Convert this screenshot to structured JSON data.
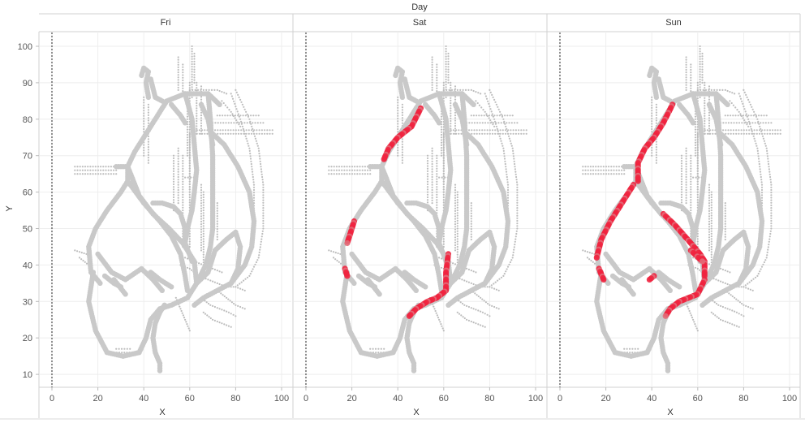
{
  "chart_data": {
    "type": "scatter",
    "column_header": "Day",
    "panels": [
      {
        "label": "Fri",
        "red_paths": []
      },
      {
        "label": "Sat",
        "red_paths": [
          [
            [
              50,
              83
            ],
            [
              46,
              78
            ],
            [
              40,
              75
            ],
            [
              36,
              72
            ],
            [
              34,
              69
            ]
          ],
          [
            [
              21,
              52
            ],
            [
              18,
              46
            ]
          ],
          [
            [
              17,
              39
            ],
            [
              18,
              37
            ]
          ],
          [
            [
              62,
              43
            ],
            [
              61,
              38
            ],
            [
              61,
              33
            ],
            [
              57,
              31
            ],
            [
              53,
              30
            ],
            [
              48,
              28
            ],
            [
              45,
              26
            ]
          ]
        ]
      },
      {
        "label": "Sun",
        "red_paths": [
          [
            [
              49,
              84
            ],
            [
              45,
              79
            ],
            [
              41,
              75
            ],
            [
              37,
              72
            ],
            [
              34,
              68
            ],
            [
              34,
              63
            ]
          ],
          [
            [
              32,
              62
            ],
            [
              27,
              57
            ],
            [
              22,
              52
            ],
            [
              18,
              47
            ],
            [
              16,
              42
            ]
          ],
          [
            [
              17,
              39
            ],
            [
              19,
              36
            ]
          ],
          [
            [
              45,
              54
            ],
            [
              50,
              51
            ],
            [
              57,
              46
            ],
            [
              61,
              43
            ],
            [
              63,
              41
            ],
            [
              63,
              37
            ]
          ],
          [
            [
              63,
              36
            ],
            [
              60,
              32
            ],
            [
              56,
              31
            ],
            [
              52,
              30
            ],
            [
              48,
              28
            ],
            [
              46,
              26
            ]
          ],
          [
            [
              41,
              37
            ],
            [
              39,
              36
            ]
          ],
          [
            [
              57,
              44
            ],
            [
              62,
              41
            ]
          ]
        ]
      }
    ],
    "x_axis": {
      "label": "X",
      "ticks": [
        0,
        20,
        40,
        60,
        80,
        100
      ],
      "range": [
        -6,
        104
      ]
    },
    "y_axis": {
      "label": "Y",
      "ticks": [
        10,
        20,
        30,
        40,
        50,
        60,
        70,
        80,
        90,
        100
      ],
      "range": [
        6,
        104
      ]
    },
    "reference_line_x": 0,
    "base_paths": [
      [
        [
          33,
          67
        ],
        [
          36,
          71
        ],
        [
          40,
          75
        ],
        [
          45,
          80
        ],
        [
          50,
          85
        ],
        [
          58,
          87
        ],
        [
          68,
          87
        ],
        [
          73,
          84
        ]
      ],
      [
        [
          33,
          67
        ],
        [
          33,
          63
        ],
        [
          30,
          60
        ],
        [
          24,
          55
        ],
        [
          19,
          50
        ],
        [
          16,
          45
        ],
        [
          17,
          38
        ],
        [
          21,
          35
        ]
      ],
      [
        [
          33,
          67
        ],
        [
          38,
          59
        ],
        [
          44,
          54
        ],
        [
          51,
          50
        ],
        [
          57,
          46
        ],
        [
          62,
          41
        ],
        [
          63,
          35
        ],
        [
          59,
          31
        ],
        [
          52,
          29
        ],
        [
          47,
          28
        ],
        [
          43,
          25
        ],
        [
          41,
          20
        ],
        [
          38,
          16
        ],
        [
          31,
          15
        ],
        [
          24,
          16
        ],
        [
          19,
          22
        ],
        [
          16,
          30
        ],
        [
          18,
          38
        ]
      ],
      [
        [
          33,
          63
        ],
        [
          40,
          57
        ],
        [
          47,
          52
        ],
        [
          52,
          48
        ],
        [
          56,
          43
        ],
        [
          58,
          37
        ],
        [
          59,
          33
        ]
      ],
      [
        [
          20,
          43
        ],
        [
          26,
          38
        ],
        [
          32,
          36
        ],
        [
          39,
          39
        ],
        [
          44,
          36
        ],
        [
          48,
          33
        ]
      ],
      [
        [
          27,
          36
        ],
        [
          32,
          32
        ]
      ],
      [
        [
          23,
          37
        ],
        [
          27,
          35
        ],
        [
          30,
          34
        ]
      ],
      [
        [
          28,
          67
        ],
        [
          33,
          67
        ]
      ],
      [
        [
          43,
          38
        ],
        [
          47,
          36
        ],
        [
          52,
          34
        ]
      ],
      [
        [
          49,
          29
        ],
        [
          47,
          27
        ],
        [
          45,
          24
        ],
        [
          44,
          20
        ],
        [
          45,
          16
        ],
        [
          47,
          13
        ],
        [
          47,
          11
        ]
      ],
      [
        [
          44,
          57
        ],
        [
          48,
          57
        ],
        [
          53,
          56
        ],
        [
          56,
          54
        ],
        [
          58,
          50
        ],
        [
          58,
          46
        ],
        [
          61,
          41
        ]
      ],
      [
        [
          58,
          87
        ],
        [
          61,
          80
        ],
        [
          62,
          73
        ],
        [
          63,
          66
        ],
        [
          62,
          60
        ],
        [
          61,
          55
        ],
        [
          59,
          50
        ],
        [
          58,
          46
        ]
      ],
      [
        [
          68,
          87
        ],
        [
          69,
          80
        ],
        [
          70,
          70
        ],
        [
          70,
          60
        ],
        [
          70,
          50
        ],
        [
          69,
          45
        ],
        [
          67,
          40
        ],
        [
          63,
          35
        ]
      ],
      [
        [
          63,
          35
        ],
        [
          68,
          38
        ],
        [
          71,
          44
        ],
        [
          76,
          47
        ],
        [
          80,
          49
        ],
        [
          82,
          45
        ],
        [
          81,
          39
        ],
        [
          78,
          35
        ]
      ],
      [
        [
          70,
          76
        ],
        [
          75,
          73
        ],
        [
          81,
          67
        ],
        [
          86,
          60
        ],
        [
          88,
          52
        ],
        [
          87,
          45
        ],
        [
          84,
          40
        ],
        [
          78,
          35
        ],
        [
          72,
          33
        ],
        [
          66,
          31
        ],
        [
          62,
          29
        ]
      ],
      [
        [
          65,
          84
        ],
        [
          68,
          80
        ],
        [
          70,
          73
        ]
      ],
      [
        [
          43,
          91
        ],
        [
          45,
          86
        ],
        [
          48,
          85
        ]
      ],
      [
        [
          39,
          92
        ],
        [
          40,
          94
        ],
        [
          42,
          93
        ],
        [
          41,
          90
        ],
        [
          42,
          86
        ]
      ],
      [
        [
          52,
          84
        ],
        [
          56,
          81
        ],
        [
          58,
          79
        ]
      ]
    ],
    "faint_segments": [
      [
        [
          10,
          67
        ],
        [
          28,
          67
        ]
      ],
      [
        [
          10,
          66
        ],
        [
          28,
          66
        ]
      ],
      [
        [
          10,
          65
        ],
        [
          28,
          65
        ]
      ],
      [
        [
          62,
          77
        ],
        [
          96,
          77
        ]
      ],
      [
        [
          62,
          76
        ],
        [
          96,
          76
        ]
      ],
      [
        [
          70,
          79
        ],
        [
          92,
          79
        ]
      ],
      [
        [
          72,
          81
        ],
        [
          90,
          81
        ]
      ],
      [
        [
          63,
          76
        ],
        [
          63,
          90
        ]
      ],
      [
        [
          65,
          76
        ],
        [
          65,
          89
        ]
      ],
      [
        [
          61,
          86
        ],
        [
          61,
          100
        ]
      ],
      [
        [
          62,
          90
        ],
        [
          62,
          98
        ]
      ],
      [
        [
          55,
          88
        ],
        [
          55,
          97
        ]
      ],
      [
        [
          57,
          87
        ],
        [
          57,
          95
        ]
      ],
      [
        [
          60,
          45
        ],
        [
          60,
          90
        ]
      ],
      [
        [
          59,
          70
        ],
        [
          59,
          85
        ]
      ],
      [
        [
          57,
          70
        ],
        [
          57,
          45
        ]
      ],
      [
        [
          55,
          72
        ],
        [
          55,
          57
        ]
      ],
      [
        [
          53,
          70
        ],
        [
          53,
          55
        ]
      ],
      [
        [
          60,
          76
        ],
        [
          60,
          60
        ]
      ],
      [
        [
          66,
          60
        ],
        [
          66,
          40
        ]
      ],
      [
        [
          65,
          62
        ],
        [
          65,
          44
        ]
      ],
      [
        [
          70,
          58
        ],
        [
          70,
          48
        ]
      ],
      [
        [
          72,
          57
        ],
        [
          72,
          47
        ]
      ],
      [
        [
          80,
          88
        ],
        [
          86,
          80
        ],
        [
          90,
          72
        ],
        [
          92,
          62
        ],
        [
          92,
          50
        ],
        [
          90,
          42
        ],
        [
          86,
          37
        ],
        [
          80,
          34
        ]
      ],
      [
        [
          78,
          87
        ],
        [
          82,
          80
        ],
        [
          86,
          72
        ],
        [
          88,
          62
        ],
        [
          88,
          52
        ]
      ],
      [
        [
          60,
          88
        ],
        [
          66,
          88
        ],
        [
          72,
          88
        ],
        [
          76,
          87
        ]
      ],
      [
        [
          74,
          85
        ],
        [
          78,
          82
        ],
        [
          82,
          78
        ]
      ],
      [
        [
          56,
          40
        ],
        [
          60,
          39
        ],
        [
          64,
          37
        ],
        [
          68,
          36
        ],
        [
          72,
          35
        ],
        [
          76,
          34
        ],
        [
          80,
          34
        ],
        [
          84,
          33
        ]
      ],
      [
        [
          58,
          42
        ],
        [
          62,
          41
        ],
        [
          66,
          40
        ],
        [
          70,
          39
        ],
        [
          74,
          38
        ]
      ],
      [
        [
          65,
          31
        ],
        [
          69,
          29
        ],
        [
          73,
          28
        ],
        [
          77,
          27
        ],
        [
          80,
          26
        ]
      ],
      [
        [
          66,
          27
        ],
        [
          70,
          25
        ],
        [
          74,
          24
        ],
        [
          78,
          23
        ]
      ],
      [
        [
          72,
          33
        ],
        [
          76,
          31
        ],
        [
          80,
          29
        ],
        [
          84,
          28
        ]
      ],
      [
        [
          54,
          31
        ],
        [
          56,
          28
        ],
        [
          58,
          25
        ],
        [
          60,
          22
        ]
      ],
      [
        [
          12,
          42
        ],
        [
          16,
          40
        ]
      ],
      [
        [
          10,
          44
        ],
        [
          15,
          43
        ]
      ],
      [
        [
          26,
          16
        ],
        [
          36,
          16
        ]
      ],
      [
        [
          28,
          17
        ],
        [
          34,
          17
        ]
      ],
      [
        [
          58,
          64
        ],
        [
          63,
          64
        ]
      ],
      [
        [
          40,
          86
        ],
        [
          40,
          70
        ]
      ],
      [
        [
          42,
          84
        ],
        [
          42,
          68
        ]
      ]
    ],
    "colors": {
      "base": "#c9c9c9",
      "faint": "#bdbdbd",
      "highlight": "#f0233f",
      "highlight_soft": "#e26b78",
      "grid": "#eeeeee",
      "axis_text": "#555555"
    }
  }
}
